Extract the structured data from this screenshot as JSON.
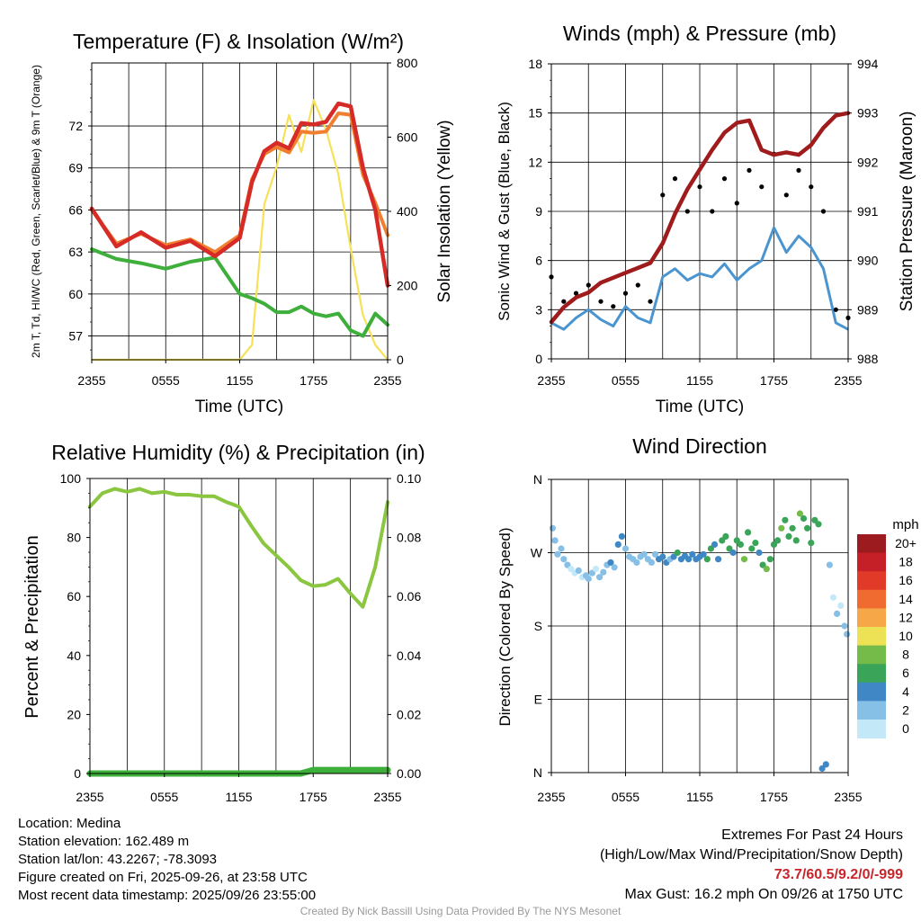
{
  "panels": {
    "temperature": {
      "title": "Temperature (F) & Insolation (W/m²)",
      "ylabel_left": "2m T, Td, HI/WC (Red, Green, Scarlet/Blue) & 9m T (Orange)",
      "ylabel_right": "Solar Insolation (Yellow)",
      "xlabel": "Time (UTC)"
    },
    "winds": {
      "title": "Winds (mph) & Pressure (mb)",
      "ylabel_left": "Sonic Wind & Gust (Blue, Black)",
      "ylabel_right": "Station Pressure (Maroon)",
      "xlabel": "Time (UTC)"
    },
    "humidity": {
      "title": "Relative Humidity (%) & Precipitation (in)",
      "ylabel_left": "Percent & Precipitation"
    },
    "direction": {
      "title": "Wind Direction",
      "ylabel_left": "Direction (Colored By Speed)",
      "legend_title": "mph"
    }
  },
  "chart_data": [
    {
      "type": "line",
      "title": "Temperature (F) & Insolation (W/m²)",
      "x_ticks": [
        "2355",
        "0555",
        "1155",
        "1755",
        "2355"
      ],
      "xlabel": "Time (UTC)",
      "x_hours": [
        0,
        2,
        4,
        6,
        8,
        10,
        12,
        13,
        14,
        15,
        16,
        17,
        18,
        19,
        20,
        21,
        22,
        23,
        24
      ],
      "ylim": [
        55.3,
        76.5
      ],
      "y_ticks": [
        57,
        60,
        63,
        66,
        69,
        72
      ],
      "y2lim": [
        0,
        800
      ],
      "y2_ticks": [
        0,
        200,
        400,
        600,
        800
      ],
      "colors": {
        "temp_2m": "#d62b26",
        "temp_9m": "#f08030",
        "dewpoint": "#3daf3a",
        "insolation": "#f7e15a"
      },
      "series": [
        {
          "name": "2m T",
          "axis": "left",
          "values": [
            66.1,
            63.4,
            64.4,
            63.3,
            63.8,
            62.7,
            64.0,
            68.0,
            70.2,
            70.8,
            70.4,
            72.2,
            72.1,
            72.3,
            73.6,
            73.4,
            69.0,
            66.0,
            60.6
          ]
        },
        {
          "name": "9m T",
          "axis": "left",
          "values": [
            66.0,
            63.6,
            64.3,
            63.5,
            63.9,
            63.0,
            64.2,
            68.2,
            70.0,
            70.5,
            70.1,
            71.6,
            71.5,
            71.6,
            72.9,
            72.8,
            68.5,
            66.5,
            64.2
          ]
        },
        {
          "name": "Dewpoint",
          "axis": "left",
          "values": [
            63.2,
            62.5,
            62.2,
            61.8,
            62.3,
            62.6,
            60.0,
            59.7,
            59.3,
            58.7,
            58.7,
            59.1,
            58.6,
            58.4,
            58.6,
            57.4,
            57.0,
            58.6,
            57.8
          ]
        },
        {
          "name": "Solar Insolation",
          "axis": "right",
          "values": [
            0,
            0,
            0,
            0,
            0,
            0,
            0,
            40,
            420,
            520,
            660,
            560,
            700,
            620,
            500,
            300,
            120,
            40,
            0
          ]
        }
      ]
    },
    {
      "type": "line",
      "title": "Winds (mph) & Pressure (mb)",
      "x_ticks": [
        "2355",
        "0555",
        "1155",
        "1755",
        "2355"
      ],
      "xlabel": "Time (UTC)",
      "x_hours": [
        0,
        1,
        2,
        3,
        4,
        5,
        6,
        7,
        8,
        9,
        10,
        11,
        12,
        13,
        14,
        15,
        16,
        17,
        18,
        19,
        20,
        21,
        22,
        23,
        24
      ],
      "ylim": [
        0,
        18
      ],
      "y_ticks": [
        0,
        3,
        6,
        9,
        12,
        15,
        18
      ],
      "y2lim": [
        988,
        994
      ],
      "y2_ticks": [
        988,
        989,
        990,
        991,
        992,
        993,
        994
      ],
      "colors": {
        "wind": "#4a95d0",
        "gust": "#000000",
        "pressure": "#a01c1c"
      },
      "series": [
        {
          "name": "Sonic Wind",
          "axis": "left",
          "values": [
            2.2,
            1.8,
            2.5,
            3.0,
            2.4,
            2.0,
            3.2,
            2.5,
            2.2,
            5.0,
            5.5,
            4.8,
            5.2,
            5.0,
            5.8,
            4.8,
            5.5,
            6.0,
            8.0,
            6.5,
            7.5,
            6.8,
            5.5,
            2.2,
            1.8
          ]
        },
        {
          "name": "Gust",
          "axis": "left",
          "values": [
            5.0,
            3.5,
            4.0,
            4.5,
            3.5,
            3.2,
            4.0,
            4.5,
            3.5,
            10.0,
            11.0,
            9.0,
            10.5,
            9.0,
            11.0,
            9.5,
            11.5,
            10.5,
            12.5,
            10.0,
            11.5,
            10.5,
            9.0,
            3.0,
            2.5
          ]
        },
        {
          "name": "Station Pressure",
          "axis": "right",
          "values": [
            988.75,
            989.05,
            989.25,
            989.35,
            989.55,
            989.65,
            989.75,
            989.85,
            989.95,
            990.35,
            990.95,
            991.45,
            991.85,
            992.25,
            992.6,
            992.8,
            992.85,
            992.25,
            992.15,
            992.2,
            992.15,
            992.35,
            992.7,
            992.95,
            993.0
          ]
        }
      ]
    },
    {
      "type": "line",
      "title": "Relative Humidity (%) & Precipitation (in)",
      "x_ticks": [
        "2355",
        "0555",
        "1155",
        "1755",
        "2355"
      ],
      "ylabel": "Percent & Precipitation",
      "x_hours": [
        0,
        1,
        2,
        3,
        4,
        5,
        6,
        7,
        8,
        9,
        10,
        11,
        12,
        13,
        14,
        15,
        16,
        17,
        18,
        19,
        20,
        21,
        22,
        23,
        24
      ],
      "ylim": [
        0,
        100
      ],
      "y_ticks": [
        0,
        20,
        40,
        60,
        80,
        100
      ],
      "y2lim": [
        0,
        0.1
      ],
      "y2_ticks": [
        "0.00",
        "0.02",
        "0.04",
        "0.06",
        "0.08",
        "0.10"
      ],
      "colors": {
        "rh": "#8ac640",
        "precip": "#3daf3a"
      },
      "series": [
        {
          "name": "Relative Humidity",
          "axis": "left",
          "values": [
            90.5,
            95,
            96.5,
            95.5,
            96.5,
            95,
            95.5,
            94.5,
            94.5,
            94,
            94,
            92,
            90.5,
            84,
            78,
            74,
            70,
            65.5,
            63.5,
            64,
            66,
            61,
            56.5,
            70,
            92
          ]
        },
        {
          "name": "Precipitation",
          "axis": "right",
          "values": [
            0,
            0,
            0,
            0,
            0,
            0,
            0,
            0,
            0,
            0,
            0,
            0,
            0,
            0,
            0,
            0,
            0,
            0,
            0.0012,
            0.0012,
            0.0012,
            0.0012,
            0.0012,
            0.0012,
            0.0012
          ]
        }
      ]
    },
    {
      "type": "scatter",
      "title": "Wind Direction",
      "x_ticks": [
        "2355",
        "0555",
        "1155",
        "1755",
        "2355"
      ],
      "ylabel": "Direction (Colored By Speed)",
      "y_ticks": [
        "N",
        "E",
        "S",
        "W",
        "N"
      ],
      "ylim_degrees": [
        0,
        360
      ],
      "legend": {
        "title": "mph",
        "labels": [
          "0",
          "2",
          "4",
          "6",
          "8",
          "10",
          "12",
          "14",
          "16",
          "18",
          "20+"
        ],
        "colors": [
          "#c3e8f8",
          "#86c0e6",
          "#3f88c5",
          "#3aa458",
          "#75bb4a",
          "#ede156",
          "#f6a748",
          "#ef6b30",
          "#e13a28",
          "#c51f27",
          "#9b1b1f"
        ]
      },
      "x_hours": [
        0.1,
        0.3,
        0.5,
        0.8,
        1.0,
        1.3,
        1.6,
        1.9,
        2.2,
        2.5,
        2.8,
        3.0,
        3.3,
        3.6,
        3.9,
        4.2,
        4.5,
        4.8,
        5.1,
        5.4,
        5.7,
        6.0,
        6.3,
        6.6,
        6.9,
        7.2,
        7.5,
        7.8,
        8.1,
        8.4,
        8.7,
        9.0,
        9.3,
        9.6,
        9.9,
        10.2,
        10.5,
        10.8,
        11.1,
        11.4,
        11.7,
        12.0,
        12.3,
        12.6,
        12.9,
        13.2,
        13.5,
        13.8,
        14.1,
        14.4,
        14.7,
        15.0,
        15.3,
        15.6,
        15.9,
        16.2,
        16.5,
        16.8,
        17.1,
        17.4,
        17.7,
        18.0,
        18.3,
        18.6,
        18.9,
        19.2,
        19.5,
        19.8,
        20.1,
        20.4,
        20.7,
        21.0,
        21.3,
        21.6,
        21.9,
        22.2,
        22.5,
        22.8,
        23.1,
        23.4,
        23.7,
        23.9
      ],
      "direction_deg": [
        300,
        285,
        268,
        275,
        262,
        255,
        250,
        245,
        248,
        240,
        242,
        238,
        245,
        250,
        240,
        246,
        255,
        258,
        252,
        280,
        290,
        275,
        265,
        262,
        258,
        265,
        268,
        262,
        258,
        268,
        262,
        265,
        258,
        262,
        265,
        270,
        262,
        266,
        262,
        268,
        262,
        265,
        268,
        262,
        275,
        280,
        262,
        285,
        290,
        275,
        270,
        285,
        280,
        262,
        295,
        275,
        282,
        270,
        255,
        250,
        262,
        280,
        285,
        300,
        310,
        290,
        300,
        285,
        318,
        312,
        300,
        282,
        310,
        305,
        5,
        10,
        255,
        215,
        195,
        205,
        180,
        170
      ],
      "speed_mph": [
        3,
        2,
        2,
        2,
        2,
        2,
        1,
        1,
        2,
        1,
        2,
        2,
        2,
        1,
        2,
        3,
        2,
        4,
        3,
        4,
        4,
        3,
        2,
        2,
        3,
        2,
        2,
        2,
        3,
        3,
        4,
        4,
        5,
        3,
        4,
        6,
        5,
        5,
        4,
        4,
        5,
        5,
        4,
        6,
        6,
        5,
        5,
        6,
        7,
        6,
        5,
        6,
        7,
        8,
        7,
        6,
        7,
        5,
        7,
        8,
        6,
        7,
        6,
        8,
        7,
        6,
        6,
        7,
        8,
        7,
        6,
        6,
        6,
        7,
        4,
        4,
        2,
        1,
        2,
        1,
        2,
        3
      ]
    }
  ],
  "info": {
    "location": "Location: Medina",
    "elevation": "Station elevation: 162.489 m",
    "latlon": "Station lat/lon: 43.2267; -78.3093",
    "created": "Figure created on Fri, 2025-09-26, at 23:58 UTC",
    "recent": "Most recent data timestamp: 2025/09/26 23:55:00"
  },
  "extremes": {
    "heading": "Extremes For Past 24 Hours",
    "sub": "(High/Low/Max Wind/Precipitation/Snow Depth)",
    "values": "73.7/60.5/9.2/0/-999",
    "gust": "Max Gust: 16.2 mph On 09/26 at 1750 UTC"
  },
  "credit": "Created By Nick Bassill Using Data Provided By The NYS Mesonet"
}
